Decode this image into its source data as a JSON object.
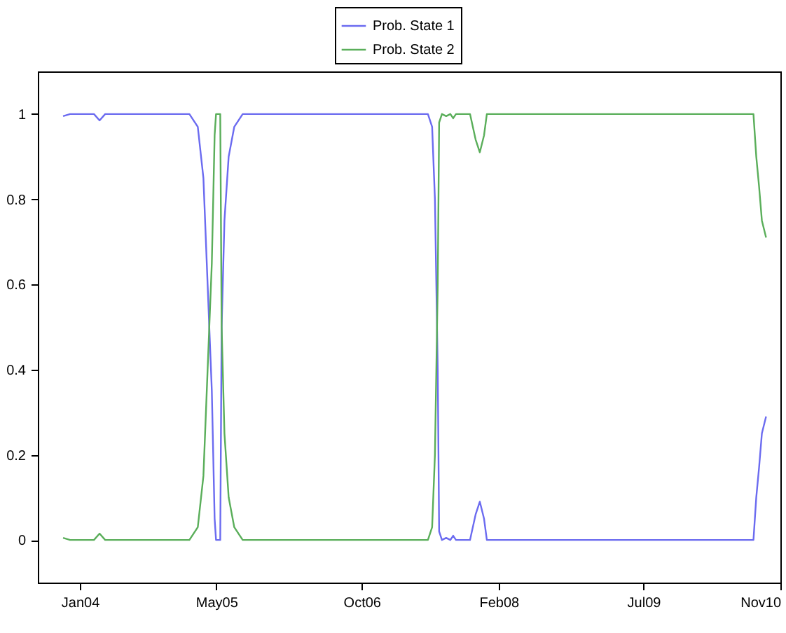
{
  "chart_data": {
    "type": "line",
    "x": [
      "2003-11-02",
      "2003-11-27",
      "2004-02-20",
      "2004-03-11",
      "2004-03-31",
      "2005-01-25",
      "2005-02-24",
      "2005-03-16",
      "2005-03-31",
      "2005-04-15",
      "2005-04-25",
      "2005-04-30",
      "2005-05-15",
      "2005-05-20",
      "2005-05-30",
      "2005-06-14",
      "2005-07-04",
      "2005-08-03",
      "2007-05-25",
      "2007-06-09",
      "2007-06-19",
      "2007-06-29",
      "2007-07-04",
      "2007-07-14",
      "2007-07-29",
      "2007-08-13",
      "2007-08-23",
      "2007-09-02",
      "2007-10-22",
      "2007-11-11",
      "2007-11-26",
      "2007-12-11",
      "2007-12-21",
      "2010-07-28",
      "2010-08-07",
      "2010-08-17",
      "2010-08-27",
      "2010-09-11"
    ],
    "series": [
      {
        "name": "Prob. State 1",
        "color": "#6b6bf0",
        "values": [
          0.995,
          1,
          1,
          0.985,
          1,
          1,
          0.97,
          0.85,
          0.6,
          0.35,
          0.05,
          0,
          0,
          0.5,
          0.75,
          0.9,
          0.97,
          1,
          1,
          0.97,
          0.8,
          0.4,
          0.02,
          0,
          0.005,
          0,
          0.01,
          0,
          0,
          0.06,
          0.09,
          0.05,
          0,
          0,
          0.1,
          0.17,
          0.25,
          0.29
        ]
      },
      {
        "name": "Prob. State 2",
        "color": "#5aae5a",
        "values": [
          0.005,
          0,
          0,
          0.015,
          0,
          0,
          0.03,
          0.15,
          0.4,
          0.65,
          0.95,
          1,
          1,
          0.5,
          0.25,
          0.1,
          0.03,
          0,
          0,
          0.03,
          0.2,
          0.6,
          0.98,
          1,
          0.995,
          1,
          0.99,
          1,
          1,
          0.94,
          0.91,
          0.95,
          1,
          1,
          0.9,
          0.83,
          0.75,
          0.71
        ]
      }
    ],
    "xlim": [
      "2003-08-04",
      "2010-11-01"
    ],
    "xticks": [
      {
        "value": "2004-01-01",
        "label": "Jan04"
      },
      {
        "value": "2005-05-01",
        "label": "May05"
      },
      {
        "value": "2006-10-01",
        "label": "Oct06"
      },
      {
        "value": "2008-02-01",
        "label": "Feb08"
      },
      {
        "value": "2009-07-01",
        "label": "Jul09"
      },
      {
        "value": "2010-11-01",
        "label": "Nov10"
      }
    ],
    "ylim": [
      -0.1,
      1.1
    ],
    "yticks": [
      0,
      0.2,
      0.4,
      0.6,
      0.8,
      1
    ],
    "legend": "top",
    "grid": false,
    "line_style": "solid",
    "marker": "none"
  }
}
